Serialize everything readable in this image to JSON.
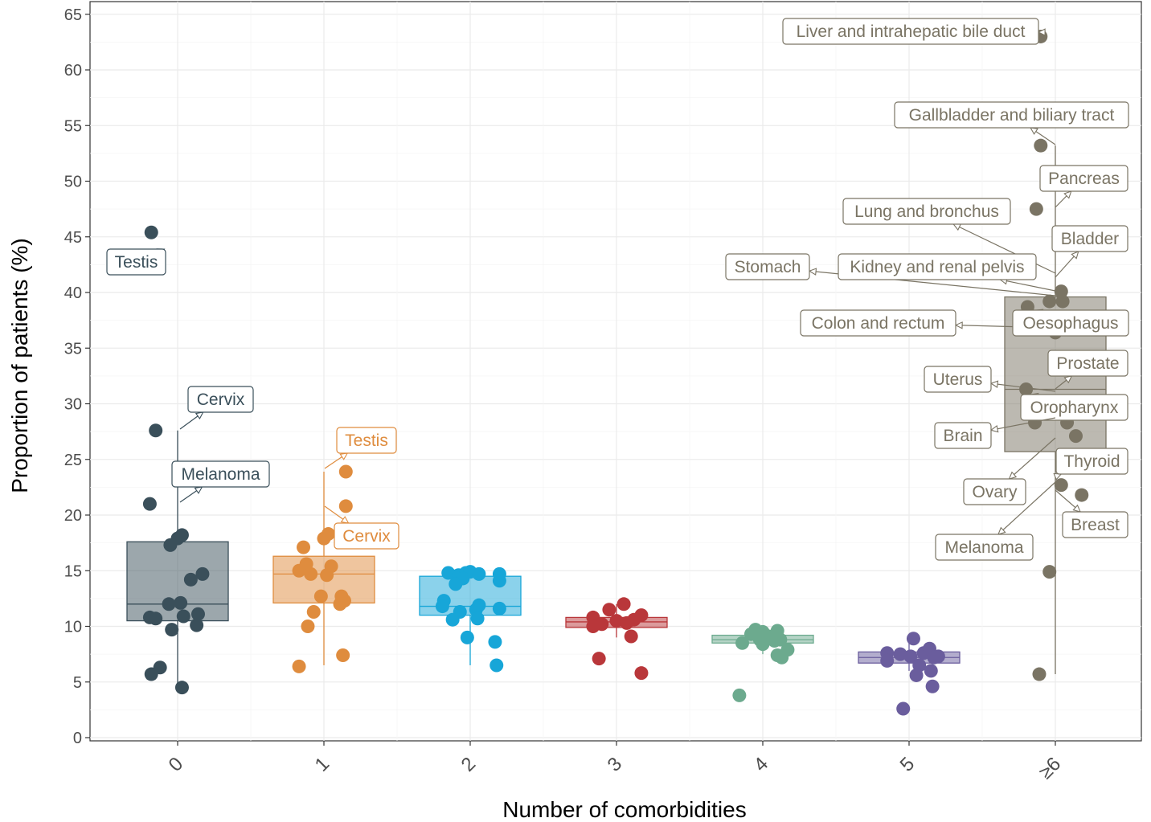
{
  "chart_data": {
    "type": "box-jitter",
    "xlabel": "Number of comorbidities",
    "ylabel": "Proportion of patients (%)",
    "ylim": [
      0,
      65.5
    ],
    "yticks": [
      0,
      5,
      10,
      15,
      20,
      25,
      30,
      35,
      40,
      45,
      50,
      55,
      60,
      65
    ],
    "grid": true,
    "legend": "none",
    "categories": [
      "0",
      "1",
      "2",
      "3",
      "4",
      "5",
      "≥6"
    ],
    "groups": [
      {
        "category": "0",
        "color": "#3a4f5a",
        "box": {
          "q1": 10.5,
          "median": 12.0,
          "q3": 17.6,
          "whisker_low": 4.5,
          "whisker_high": 27.6
        },
        "points": [
          [
            -0.18,
            45.4
          ],
          [
            -0.15,
            27.6
          ],
          [
            -0.19,
            21.0
          ],
          [
            0.03,
            18.2
          ],
          [
            0.0,
            17.9
          ],
          [
            -0.05,
            17.3
          ],
          [
            0.17,
            14.7
          ],
          [
            0.09,
            14.2
          ],
          [
            -0.06,
            12.0
          ],
          [
            0.02,
            12.1
          ],
          [
            -0.19,
            10.8
          ],
          [
            -0.15,
            10.7
          ],
          [
            0.04,
            10.9
          ],
          [
            0.14,
            11.1
          ],
          [
            0.13,
            10.1
          ],
          [
            -0.04,
            9.7
          ],
          [
            -0.12,
            6.3
          ],
          [
            -0.18,
            5.7
          ],
          [
            0.03,
            4.5
          ]
        ],
        "annotations": [
          {
            "label": "Testis",
            "y": 45.4,
            "dir": "left"
          },
          {
            "label": "Cervix",
            "y": 27.6,
            "dir": "right"
          },
          {
            "label": "Melanoma",
            "y": 21.0,
            "dir": "right"
          }
        ]
      },
      {
        "category": "1",
        "color": "#df8c3e",
        "box": {
          "q1": 12.1,
          "median": 14.7,
          "q3": 16.3,
          "whisker_low": 6.5,
          "whisker_high": 23.9
        },
        "points": [
          [
            0.15,
            23.9
          ],
          [
            0.15,
            20.8
          ],
          [
            0.03,
            18.3
          ],
          [
            0.0,
            17.9
          ],
          [
            -0.14,
            17.1
          ],
          [
            -0.12,
            15.6
          ],
          [
            0.05,
            15.4
          ],
          [
            -0.17,
            15.0
          ],
          [
            -0.09,
            14.7
          ],
          [
            0.02,
            14.6
          ],
          [
            0.12,
            12.7
          ],
          [
            0.14,
            12.3
          ],
          [
            -0.02,
            12.7
          ],
          [
            0.11,
            12.0
          ],
          [
            -0.07,
            11.3
          ],
          [
            -0.11,
            10.0
          ],
          [
            0.13,
            7.4
          ],
          [
            -0.17,
            6.4
          ]
        ],
        "annotations": [
          {
            "label": "Testis",
            "y": 23.9,
            "dir": "right"
          },
          {
            "label": "Cervix",
            "y": 20.8,
            "dir": "right"
          }
        ]
      },
      {
        "category": "2",
        "color": "#17a6d8",
        "box": {
          "q1": 11.0,
          "median": 11.8,
          "q3": 14.5,
          "whisker_low": 6.5,
          "whisker_high": 14.9
        },
        "points": [
          [
            -0.15,
            14.8
          ],
          [
            -0.08,
            14.6
          ],
          [
            -0.03,
            14.8
          ],
          [
            0.0,
            14.9
          ],
          [
            0.06,
            14.7
          ],
          [
            0.2,
            14.7
          ],
          [
            0.2,
            14.1
          ],
          [
            -0.05,
            14.3
          ],
          [
            -0.1,
            13.8
          ],
          [
            -0.18,
            12.3
          ],
          [
            -0.19,
            11.8
          ],
          [
            0.06,
            11.9
          ],
          [
            0.04,
            11.5
          ],
          [
            0.2,
            11.6
          ],
          [
            -0.07,
            11.3
          ],
          [
            -0.12,
            10.6
          ],
          [
            0.05,
            10.7
          ],
          [
            -0.02,
            9.0
          ],
          [
            0.17,
            8.6
          ],
          [
            0.18,
            6.5
          ]
        ],
        "annotations": []
      },
      {
        "category": "3",
        "color": "#b9373a",
        "box": {
          "q1": 9.9,
          "median": 10.4,
          "q3": 10.8,
          "whisker_low": 9.0,
          "whisker_high": 12.0
        },
        "points": [
          [
            0.05,
            12.0
          ],
          [
            -0.05,
            11.5
          ],
          [
            -0.16,
            10.8
          ],
          [
            0.12,
            10.6
          ],
          [
            -0.1,
            10.2
          ],
          [
            0.0,
            10.5
          ],
          [
            0.07,
            10.3
          ],
          [
            0.17,
            11.0
          ],
          [
            -0.16,
            10.0
          ],
          [
            0.1,
            9.1
          ],
          [
            -0.12,
            7.1
          ],
          [
            0.17,
            5.8
          ]
        ],
        "annotations": []
      },
      {
        "category": "4",
        "color": "#6caa8e",
        "box": {
          "q1": 8.5,
          "median": 8.8,
          "q3": 9.2,
          "whisker_low": 7.5,
          "whisker_high": 9.6
        },
        "points": [
          [
            -0.05,
            9.7
          ],
          [
            0.1,
            9.6
          ],
          [
            -0.08,
            9.3
          ],
          [
            0.0,
            9.5
          ],
          [
            0.04,
            9.1
          ],
          [
            -0.14,
            8.5
          ],
          [
            -0.02,
            8.8
          ],
          [
            0.08,
            8.7
          ],
          [
            0.12,
            8.8
          ],
          [
            0.0,
            8.4
          ],
          [
            0.1,
            7.4
          ],
          [
            0.17,
            7.9
          ],
          [
            0.13,
            7.2
          ],
          [
            -0.16,
            3.8
          ]
        ],
        "annotations": []
      },
      {
        "category": "5",
        "color": "#6a5d9d",
        "box": {
          "q1": 6.7,
          "median": 7.2,
          "q3": 7.7,
          "whisker_low": 6.0,
          "whisker_high": 8.9
        },
        "points": [
          [
            0.03,
            8.9
          ],
          [
            -0.15,
            7.6
          ],
          [
            -0.06,
            7.5
          ],
          [
            0.1,
            7.6
          ],
          [
            0.14,
            8.0
          ],
          [
            0.17,
            7.2
          ],
          [
            0.2,
            7.3
          ],
          [
            -0.15,
            6.9
          ],
          [
            0.01,
            7.3
          ],
          [
            0.07,
            6.5
          ],
          [
            0.15,
            6.0
          ],
          [
            0.05,
            5.6
          ],
          [
            0.16,
            4.6
          ],
          [
            -0.04,
            2.6
          ]
        ],
        "annotations": []
      },
      {
        "category": "≥6",
        "color": "#7a7464",
        "box": {
          "q1": 25.7,
          "median": 31.3,
          "q3": 39.6,
          "whisker_low": 5.7,
          "whisker_high": 53.2
        },
        "points": [
          [
            -0.1,
            63.0
          ],
          [
            -0.1,
            53.2
          ],
          [
            -0.13,
            47.5
          ],
          [
            0.04,
            40.1
          ],
          [
            -0.04,
            39.2
          ],
          [
            0.05,
            39.2
          ],
          [
            -0.19,
            38.7
          ],
          [
            0.0,
            36.4
          ],
          [
            -0.2,
            31.3
          ],
          [
            -0.14,
            28.3
          ],
          [
            0.08,
            28.3
          ],
          [
            0.14,
            27.1
          ],
          [
            0.04,
            22.7
          ],
          [
            0.18,
            21.8
          ],
          [
            -0.04,
            14.9
          ],
          [
            -0.11,
            5.7
          ]
        ],
        "annotations": [
          {
            "label": "Liver and intrahepatic bile duct",
            "y": 63.0
          },
          {
            "label": "Gallbladder and biliary tract",
            "y": 53.2
          },
          {
            "label": "Pancreas",
            "y": 47.5
          },
          {
            "label": "Lung and bronchus",
            "y": 40.1
          },
          {
            "label": "Bladder",
            "y": 39.2
          },
          {
            "label": "Stomach",
            "y": 39.2
          },
          {
            "label": "Kidney and renal pelvis",
            "y": 38.7
          },
          {
            "label": "Colon and rectum",
            "y": 36.4
          },
          {
            "label": "Oesophagus",
            "y": 36.4
          },
          {
            "label": "Prostate",
            "y": 31.3
          },
          {
            "label": "Uterus",
            "y": 31.3
          },
          {
            "label": "Oropharynx",
            "y": 28.3
          },
          {
            "label": "Brain",
            "y": 28.3
          },
          {
            "label": "Thyroid",
            "y": 27.1
          },
          {
            "label": "Ovary",
            "y": 22.7
          },
          {
            "label": "Breast",
            "y": 21.8
          },
          {
            "label": "Melanoma",
            "y": 14.9
          }
        ]
      }
    ]
  }
}
